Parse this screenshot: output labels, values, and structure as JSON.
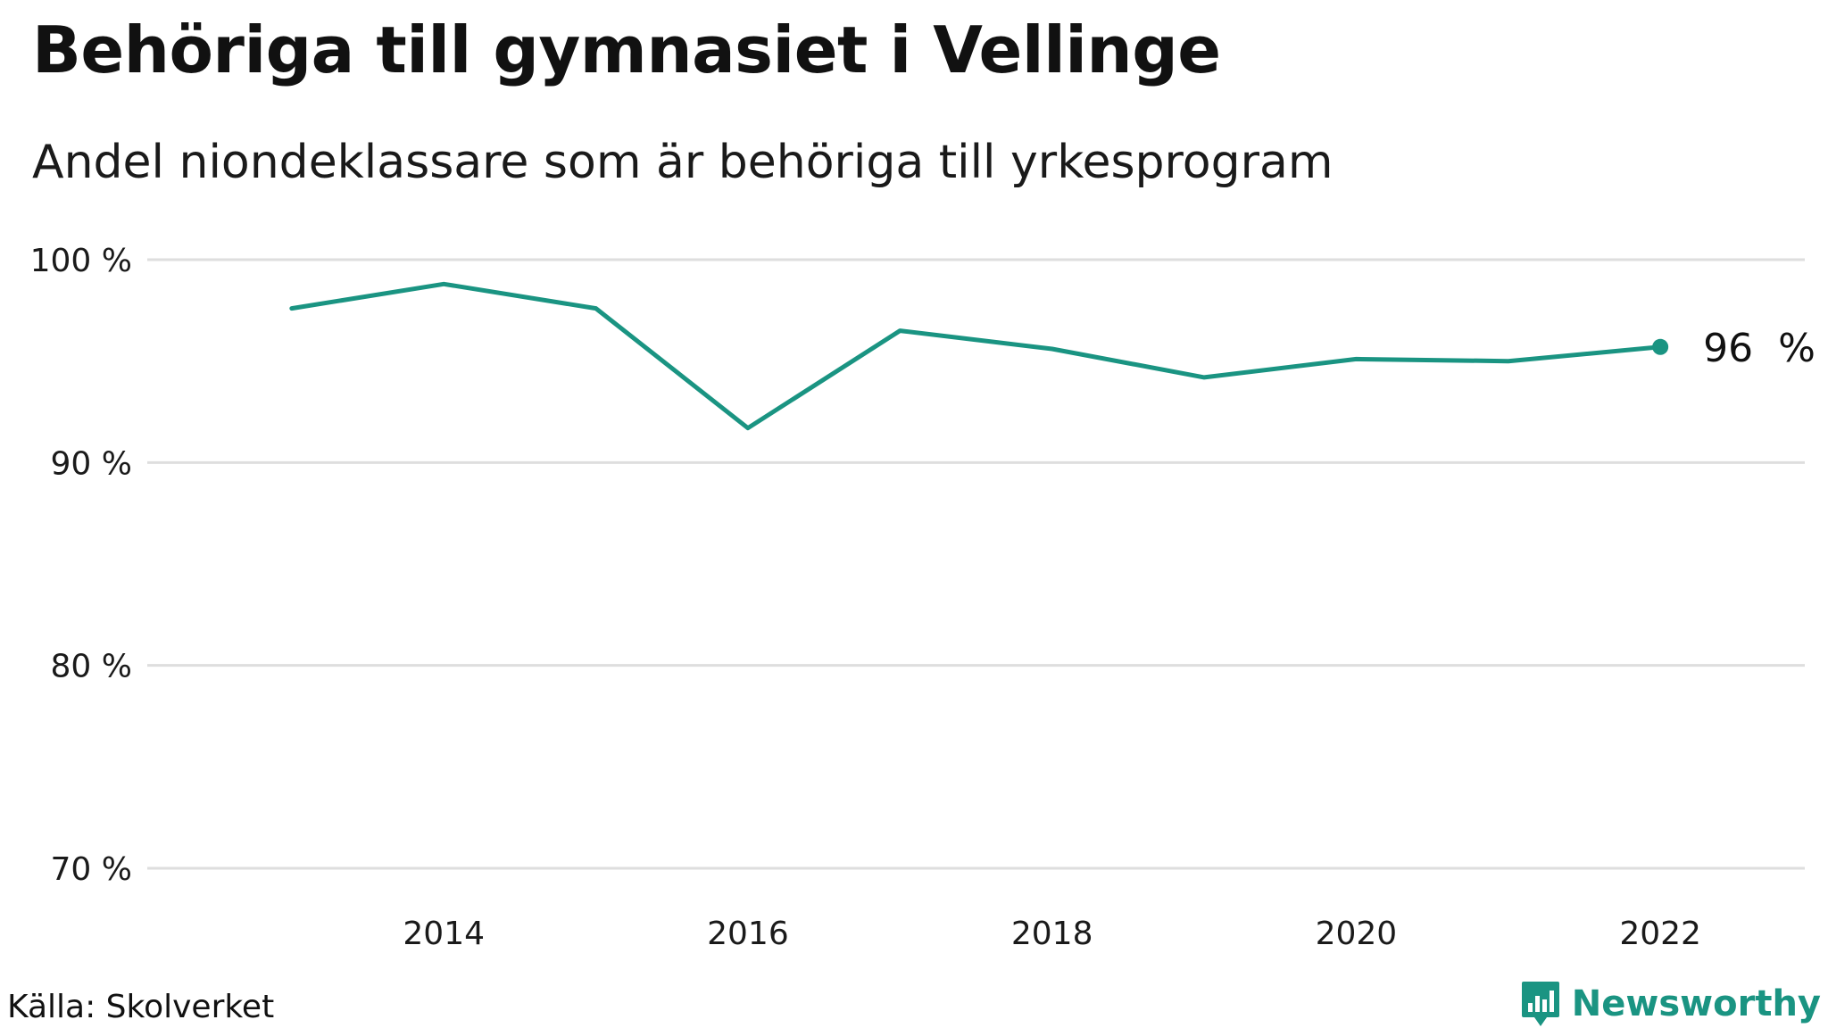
{
  "chart_data": {
    "type": "line",
    "title": "Behöriga till gymnasiet i Vellinge",
    "subtitle": "Andel niondeklassare som är behöriga till yrkesprogram",
    "x": [
      2013,
      2014,
      2015,
      2016,
      2017,
      2018,
      2019,
      2020,
      2021,
      2022
    ],
    "series": [
      {
        "values": [
          97.6,
          98.8,
          97.6,
          91.7,
          96.5,
          95.6,
          94.2,
          95.1,
          95.0,
          95.7
        ]
      }
    ],
    "xticks": [
      2014,
      2016,
      2018,
      2020,
      2022
    ],
    "xtick_labels": [
      "2014",
      "2016",
      "2018",
      "2020",
      "2022"
    ],
    "yticks": [
      70,
      80,
      90,
      100
    ],
    "ytick_labels": [
      "70 %",
      "80 %",
      "90 %",
      "100 %"
    ],
    "ylim": [
      70,
      100
    ],
    "xlim": [
      2012.05,
      2022.95
    ],
    "end_label": "96  %",
    "grid": true,
    "line_color": "#1a9482",
    "grid_color": "#dedede"
  },
  "footer": {
    "source": "Källa: Skolverket",
    "brand": "Newsworthy",
    "brand_icon": "newsworthy-logo-icon"
  }
}
